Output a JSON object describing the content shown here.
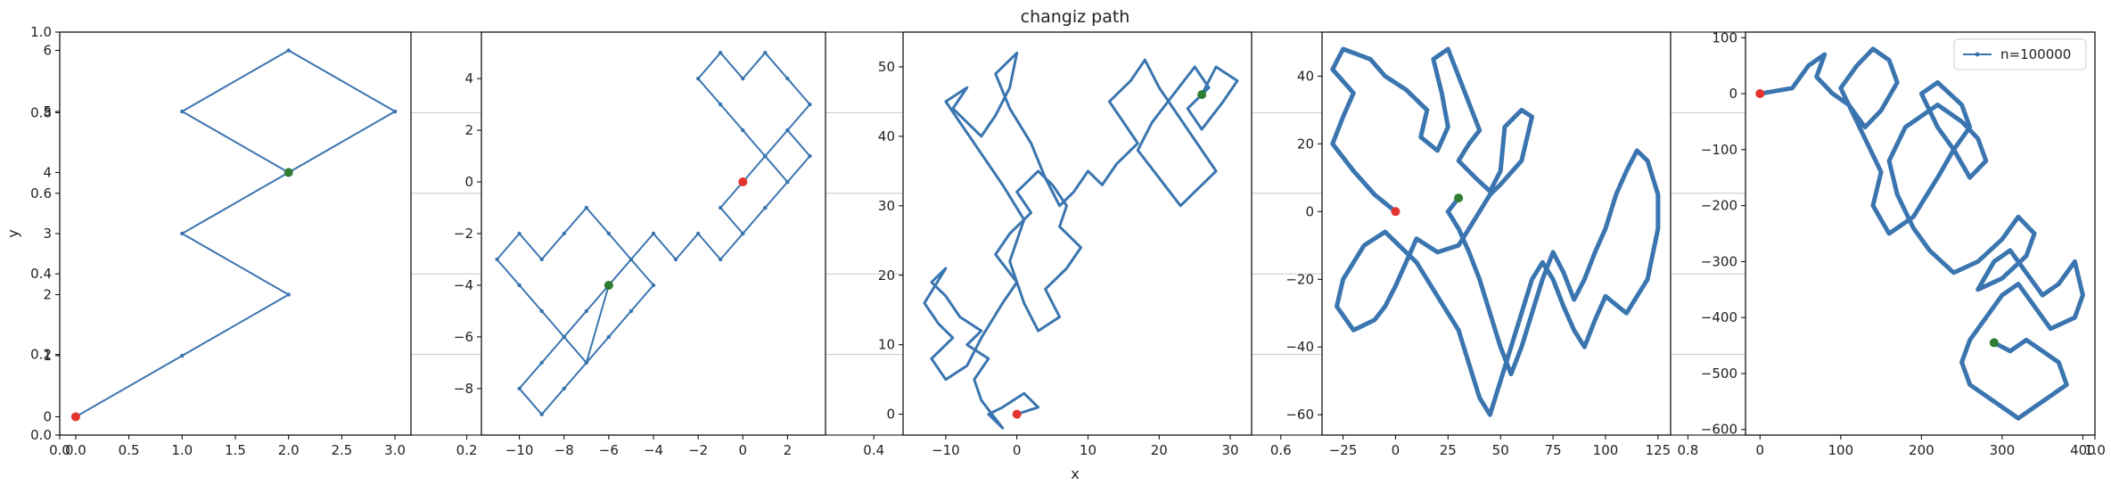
{
  "title": "changiz path",
  "xlabel": "x",
  "ylabel": "y",
  "colors": {
    "line": "#3a75af",
    "start": "#e3342f",
    "end": "#2e7d32",
    "axes": "#000000",
    "grid": "#c8c8c8"
  },
  "background_axis": {
    "xticks": [
      "0.0",
      "0.2",
      "0.4",
      "0.6",
      "0.8",
      "1.0"
    ],
    "yticks": [
      "0.0",
      "0.2",
      "0.4",
      "0.6",
      "0.8",
      "1.0"
    ]
  },
  "chart_data": [
    {
      "type": "line",
      "xlim": [
        -0.15,
        3.15
      ],
      "ylim": [
        -0.3,
        6.3
      ],
      "xticks": [
        0,
        0.5,
        1,
        1.5,
        2,
        2.5,
        3
      ],
      "xtick_labels": [
        "0.0",
        "0.5",
        "1.0",
        "1.5",
        "2.0",
        "2.5",
        "3.0"
      ],
      "yticks": [
        0,
        1,
        2,
        3,
        4,
        5,
        6
      ],
      "x": [
        0,
        1,
        2,
        1,
        2,
        3,
        2,
        1,
        2,
        3,
        2
      ],
      "y": [
        0,
        1,
        2,
        3,
        4,
        5,
        6,
        5,
        4,
        5,
        4
      ],
      "start": [
        0,
        0
      ],
      "end": [
        2,
        4
      ]
    },
    {
      "type": "line",
      "xlim": [
        -11.7,
        3.7
      ],
      "ylim": [
        -9.8,
        5.8
      ],
      "xticks": [
        -10,
        -8,
        -6,
        -4,
        -2,
        0,
        2
      ],
      "yticks": [
        -8,
        -6,
        -4,
        -2,
        0,
        2,
        4
      ],
      "x": [
        0,
        1,
        2,
        3,
        2,
        1,
        0,
        -1,
        0,
        1,
        2,
        3,
        2,
        1,
        0,
        -1,
        -2,
        -1,
        0,
        1,
        2,
        1,
        0,
        -1,
        -2,
        -3,
        -4,
        -5,
        -6,
        -7,
        -8,
        -9,
        -10,
        -11,
        -10,
        -9,
        -8,
        -7,
        -6,
        -5,
        -4,
        -5,
        -6,
        -7,
        -8,
        -9,
        -10,
        -9,
        -8,
        -7,
        -6
      ],
      "y": [
        0,
        1,
        2,
        1,
        0,
        -1,
        -2,
        -1,
        0,
        1,
        2,
        3,
        4,
        5,
        4,
        5,
        4,
        3,
        2,
        1,
        0,
        -1,
        -2,
        -3,
        -2,
        -3,
        -2,
        -3,
        -2,
        -1,
        -2,
        -3,
        -2,
        -3,
        -4,
        -5,
        -6,
        -7,
        -6,
        -5,
        -4,
        -3,
        -4,
        -5,
        -6,
        -7,
        -8,
        -9,
        -8,
        -7,
        -4
      ],
      "start": [
        0,
        0
      ],
      "end": [
        -6,
        -4
      ]
    },
    {
      "type": "line",
      "xlim": [
        -16,
        33
      ],
      "ylim": [
        -3,
        55
      ],
      "xticks": [
        -10,
        0,
        10,
        20,
        30
      ],
      "yticks": [
        0,
        10,
        20,
        30,
        40,
        50
      ],
      "x": [
        0,
        3,
        1,
        -2,
        -4,
        -2,
        -5,
        -6,
        -4,
        -7,
        -5,
        -8,
        -10,
        -12,
        -10,
        -13,
        -11,
        -9,
        -12,
        -10,
        -7,
        -5,
        -2,
        0,
        -3,
        -1,
        2,
        0,
        3,
        5,
        7,
        6,
        9,
        7,
        4,
        6,
        3,
        1,
        -1,
        1,
        -2,
        -4,
        -6,
        -8,
        -10,
        -7,
        -9,
        -5,
        -3,
        -1,
        0,
        -3,
        -1,
        2,
        4,
        6,
        8,
        10,
        12,
        14,
        17,
        15,
        13,
        16,
        18,
        20,
        22,
        24,
        26,
        28,
        25,
        23,
        20,
        17,
        19,
        22,
        25,
        27,
        24,
        26,
        29,
        31,
        28,
        26
      ],
      "y": [
        0,
        1,
        3,
        1,
        0,
        -2,
        2,
        5,
        8,
        10,
        12,
        14,
        17,
        19,
        21,
        16,
        13,
        11,
        8,
        5,
        7,
        11,
        16,
        19,
        23,
        26,
        29,
        32,
        35,
        33,
        30,
        27,
        24,
        21,
        18,
        14,
        12,
        16,
        22,
        28,
        33,
        36,
        39,
        42,
        45,
        47,
        44,
        40,
        43,
        47,
        52,
        49,
        44,
        39,
        34,
        30,
        32,
        35,
        33,
        36,
        39,
        42,
        45,
        48,
        51,
        47,
        44,
        41,
        38,
        35,
        32,
        30,
        34,
        38,
        42,
        46,
        50,
        47,
        44,
        41,
        45,
        48,
        50,
        46
      ],
      "start": [
        0,
        0
      ],
      "end": [
        26,
        46
      ]
    },
    {
      "type": "line",
      "xlim": [
        -35,
        131
      ],
      "ylim": [
        -66,
        53
      ],
      "xticks": [
        -25,
        0,
        25,
        50,
        75,
        100,
        125
      ],
      "yticks": [
        -60,
        -40,
        -20,
        0,
        20,
        40
      ],
      "x": [
        0,
        -10,
        -20,
        -30,
        -25,
        -20,
        -30,
        -25,
        -12,
        -5,
        5,
        15,
        12,
        20,
        25,
        22,
        18,
        25,
        30,
        35,
        40,
        35,
        30,
        38,
        45,
        50,
        52,
        60,
        65,
        60,
        50,
        45,
        40,
        35,
        30,
        20,
        10,
        5,
        0,
        -5,
        -10,
        -20,
        -28,
        -25,
        -15,
        -5,
        10,
        20,
        30,
        35,
        40,
        45,
        50,
        55,
        60,
        65,
        70,
        75,
        80,
        85,
        90,
        95,
        100,
        110,
        120,
        125,
        125,
        120,
        115,
        110,
        105,
        100,
        95,
        90,
        85,
        80,
        75,
        70,
        65,
        60,
        55,
        50,
        45,
        40,
        35,
        30,
        25,
        30
      ],
      "y": [
        0,
        5,
        12,
        20,
        28,
        35,
        42,
        48,
        45,
        40,
        36,
        30,
        22,
        18,
        25,
        35,
        45,
        48,
        40,
        32,
        24,
        20,
        15,
        10,
        6,
        12,
        25,
        30,
        28,
        15,
        8,
        5,
        0,
        -5,
        -10,
        -12,
        -8,
        -15,
        -22,
        -28,
        -32,
        -35,
        -28,
        -20,
        -10,
        -6,
        -15,
        -25,
        -35,
        -45,
        -55,
        -60,
        -50,
        -40,
        -30,
        -20,
        -15,
        -20,
        -28,
        -35,
        -40,
        -32,
        -25,
        -30,
        -20,
        -5,
        5,
        15,
        18,
        12,
        5,
        -5,
        -12,
        -20,
        -26,
        -18,
        -12,
        -20,
        -30,
        -40,
        -48,
        -40,
        -30,
        -20,
        -12,
        -5,
        0,
        4
      ],
      "start": [
        0,
        0
      ],
      "end": [
        30,
        4
      ]
    },
    {
      "type": "line",
      "legend": "n=100000",
      "legend_position": "upper-right",
      "xlim": [
        -18,
        415
      ],
      "ylim": [
        -610,
        110
      ],
      "xticks": [
        0,
        100,
        200,
        300,
        400
      ],
      "yticks": [
        -600,
        -500,
        -400,
        -300,
        -200,
        -100,
        0,
        100
      ],
      "x": [
        0,
        20,
        40,
        60,
        80,
        70,
        90,
        110,
        130,
        150,
        170,
        160,
        140,
        120,
        100,
        130,
        150,
        140,
        160,
        190,
        220,
        240,
        260,
        250,
        220,
        200,
        220,
        240,
        260,
        280,
        270,
        250,
        220,
        180,
        160,
        170,
        190,
        210,
        240,
        270,
        300,
        320,
        340,
        330,
        300,
        270,
        290,
        310,
        330,
        350,
        370,
        390,
        400,
        390,
        360,
        340,
        320,
        300,
        280,
        260,
        250,
        260,
        280,
        300,
        320,
        340,
        360,
        380,
        370,
        350,
        330,
        310,
        290
      ],
      "y": [
        0,
        5,
        10,
        50,
        70,
        30,
        0,
        -20,
        -60,
        -30,
        20,
        60,
        80,
        50,
        10,
        -80,
        -140,
        -200,
        -250,
        -220,
        -150,
        -100,
        -60,
        -20,
        20,
        0,
        -60,
        -100,
        -150,
        -120,
        -80,
        -50,
        -20,
        -60,
        -120,
        -180,
        -240,
        -280,
        -320,
        -300,
        -260,
        -220,
        -250,
        -290,
        -330,
        -350,
        -300,
        -280,
        -320,
        -360,
        -340,
        -300,
        -360,
        -400,
        -420,
        -380,
        -340,
        -360,
        -400,
        -440,
        -480,
        -520,
        -540,
        -560,
        -580,
        -560,
        -540,
        -520,
        -480,
        -460,
        -440,
        -460,
        -445
      ],
      "start": [
        0,
        0
      ],
      "end": [
        290,
        -445
      ]
    }
  ]
}
